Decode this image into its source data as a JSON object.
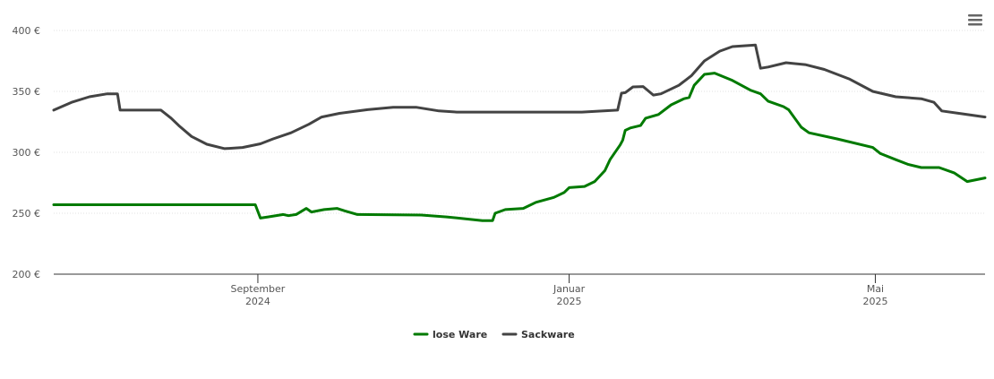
{
  "chart_data": {
    "type": "line",
    "title": "",
    "xlabel": "",
    "ylabel": "",
    "x_units": "days relative to 1 September 2024",
    "xlim": [
      -80,
      285
    ],
    "ylim": [
      200,
      400
    ],
    "yticks": [
      {
        "value": 200,
        "label": "200 €"
      },
      {
        "value": 250,
        "label": "250 €"
      },
      {
        "value": 300,
        "label": "300 €"
      },
      {
        "value": 350,
        "label": "350 €"
      },
      {
        "value": 400,
        "label": "400 €"
      }
    ],
    "xticks": [
      {
        "value": 0,
        "label": "September",
        "sublabel": "2024"
      },
      {
        "value": 122,
        "label": "Januar",
        "sublabel": "2025"
      },
      {
        "value": 242,
        "label": "Mai",
        "sublabel": "2025"
      }
    ],
    "grid": true,
    "legend_position": "bottom-center",
    "series": [
      {
        "name": "lose Ware",
        "color": "#007a00",
        "points": [
          [
            -80,
            257
          ],
          [
            -1,
            257
          ],
          [
            1,
            246
          ],
          [
            4,
            247
          ],
          [
            10,
            249
          ],
          [
            12,
            248
          ],
          [
            15,
            249
          ],
          [
            19,
            254
          ],
          [
            21,
            251
          ],
          [
            26,
            253
          ],
          [
            31,
            254
          ],
          [
            34,
            252
          ],
          [
            39,
            249
          ],
          [
            64,
            248.5
          ],
          [
            74,
            247
          ],
          [
            88,
            244
          ],
          [
            92,
            244
          ],
          [
            93,
            250
          ],
          [
            97,
            253
          ],
          [
            104,
            254
          ],
          [
            109,
            259
          ],
          [
            116,
            263
          ],
          [
            120,
            267
          ],
          [
            122,
            271
          ],
          [
            128,
            272
          ],
          [
            132,
            276
          ],
          [
            136,
            285
          ],
          [
            138,
            294
          ],
          [
            142,
            306
          ],
          [
            143,
            310
          ],
          [
            144,
            318
          ],
          [
            146,
            320
          ],
          [
            150,
            322
          ],
          [
            152,
            328
          ],
          [
            157,
            331
          ],
          [
            162,
            339
          ],
          [
            167,
            344
          ],
          [
            169,
            345
          ],
          [
            171,
            355
          ],
          [
            175,
            364
          ],
          [
            179,
            365
          ],
          [
            186,
            359
          ],
          [
            193,
            351
          ],
          [
            197,
            348
          ],
          [
            200,
            342
          ],
          [
            206,
            337.5
          ],
          [
            208,
            335
          ],
          [
            213,
            320.6
          ],
          [
            216,
            316
          ],
          [
            227,
            311
          ],
          [
            241,
            304
          ],
          [
            244,
            299
          ],
          [
            250,
            294
          ],
          [
            255,
            290
          ],
          [
            260,
            287.5
          ],
          [
            267,
            287.5
          ],
          [
            273,
            283
          ],
          [
            278,
            276
          ],
          [
            285,
            279
          ]
        ]
      },
      {
        "name": "Sackware",
        "color": "#434343",
        "points": [
          [
            -80,
            334.6
          ],
          [
            -73,
            341
          ],
          [
            -66,
            345.6
          ],
          [
            -59,
            348
          ],
          [
            -55,
            348
          ],
          [
            -54,
            334.6
          ],
          [
            -38,
            334.6
          ],
          [
            -34,
            328
          ],
          [
            -31,
            322
          ],
          [
            -26,
            313
          ],
          [
            -20,
            306.6
          ],
          [
            -13,
            303
          ],
          [
            -6,
            304
          ],
          [
            1,
            307
          ],
          [
            6,
            311
          ],
          [
            13,
            316
          ],
          [
            20,
            323
          ],
          [
            25,
            329
          ],
          [
            32,
            332
          ],
          [
            43,
            335
          ],
          [
            53,
            337
          ],
          [
            62,
            337
          ],
          [
            71,
            334
          ],
          [
            78,
            333
          ],
          [
            127,
            333
          ],
          [
            141,
            334.6
          ],
          [
            142.5,
            348.5
          ],
          [
            144,
            349
          ],
          [
            147,
            353.7
          ],
          [
            151,
            354
          ],
          [
            155,
            347
          ],
          [
            158,
            348
          ],
          [
            165,
            355
          ],
          [
            170,
            363
          ],
          [
            175,
            375
          ],
          [
            181,
            383
          ],
          [
            186,
            386.8
          ],
          [
            195,
            388
          ],
          [
            197,
            369
          ],
          [
            200,
            370
          ],
          [
            207,
            373.5
          ],
          [
            214.5,
            372
          ],
          [
            222,
            368
          ],
          [
            232,
            360
          ],
          [
            241,
            350
          ],
          [
            250,
            345.6
          ],
          [
            260,
            344
          ],
          [
            265,
            341
          ],
          [
            268,
            334
          ],
          [
            276,
            331.6
          ],
          [
            285,
            329
          ]
        ]
      }
    ]
  },
  "menu": {
    "icon": "hamburger-menu-icon"
  }
}
